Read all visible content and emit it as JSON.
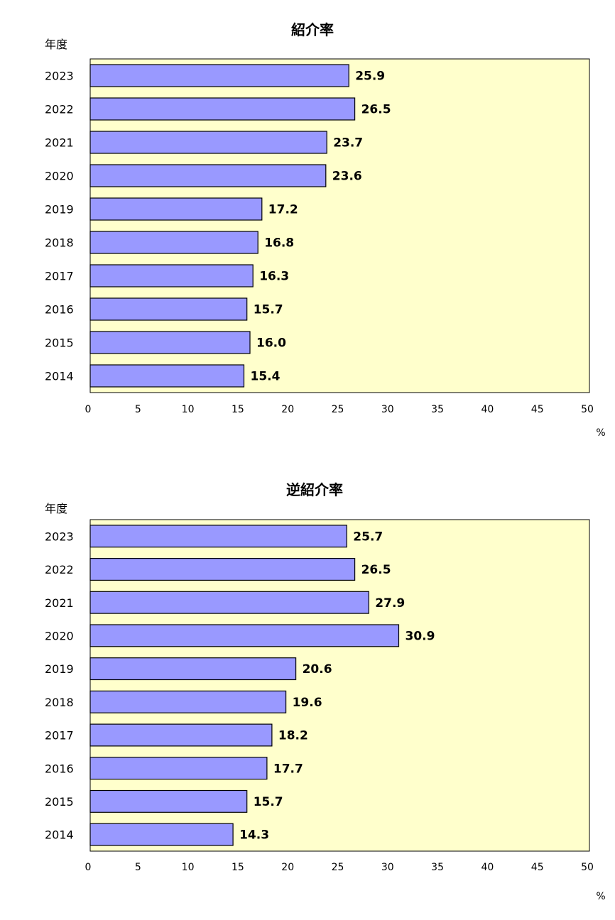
{
  "chart_data": [
    {
      "type": "bar",
      "orientation": "horizontal",
      "title": "紹介率",
      "ylabel": "年度",
      "xlabel": "%",
      "categories": [
        "2023",
        "2022",
        "2021",
        "2020",
        "2019",
        "2018",
        "2017",
        "2016",
        "2015",
        "2014"
      ],
      "values": [
        25.9,
        26.5,
        23.7,
        23.6,
        17.2,
        16.8,
        16.3,
        15.7,
        16.0,
        15.4
      ],
      "value_labels": [
        "25.9",
        "26.5",
        "23.7",
        "23.6",
        "17.2",
        "16.8",
        "16.3",
        "15.7",
        "16.0",
        "15.4"
      ],
      "xlim": [
        0,
        50
      ],
      "xticks": [
        "0",
        "5",
        "10",
        "15",
        "20",
        "25",
        "30",
        "35",
        "40",
        "45",
        "50"
      ],
      "grid": false,
      "colors": {
        "bar": "#9999ff",
        "plot_bg": "#ffffcc",
        "edge": "#000000"
      }
    },
    {
      "type": "bar",
      "orientation": "horizontal",
      "title": "逆紹介率",
      "ylabel": "年度",
      "xlabel": "%",
      "categories": [
        "2023",
        "2022",
        "2021",
        "2020",
        "2019",
        "2018",
        "2017",
        "2016",
        "2015",
        "2014"
      ],
      "values": [
        25.7,
        26.5,
        27.9,
        30.9,
        20.6,
        19.6,
        18.2,
        17.7,
        15.7,
        14.3
      ],
      "value_labels": [
        "25.7",
        "26.5",
        "27.9",
        "30.9",
        "20.6",
        "19.6",
        "18.2",
        "17.7",
        "15.7",
        "14.3"
      ],
      "xlim": [
        0,
        50
      ],
      "xticks": [
        "0",
        "5",
        "10",
        "15",
        "20",
        "25",
        "30",
        "35",
        "40",
        "45",
        "50"
      ],
      "grid": false,
      "colors": {
        "bar": "#9999ff",
        "plot_bg": "#ffffcc",
        "edge": "#000000"
      }
    }
  ]
}
